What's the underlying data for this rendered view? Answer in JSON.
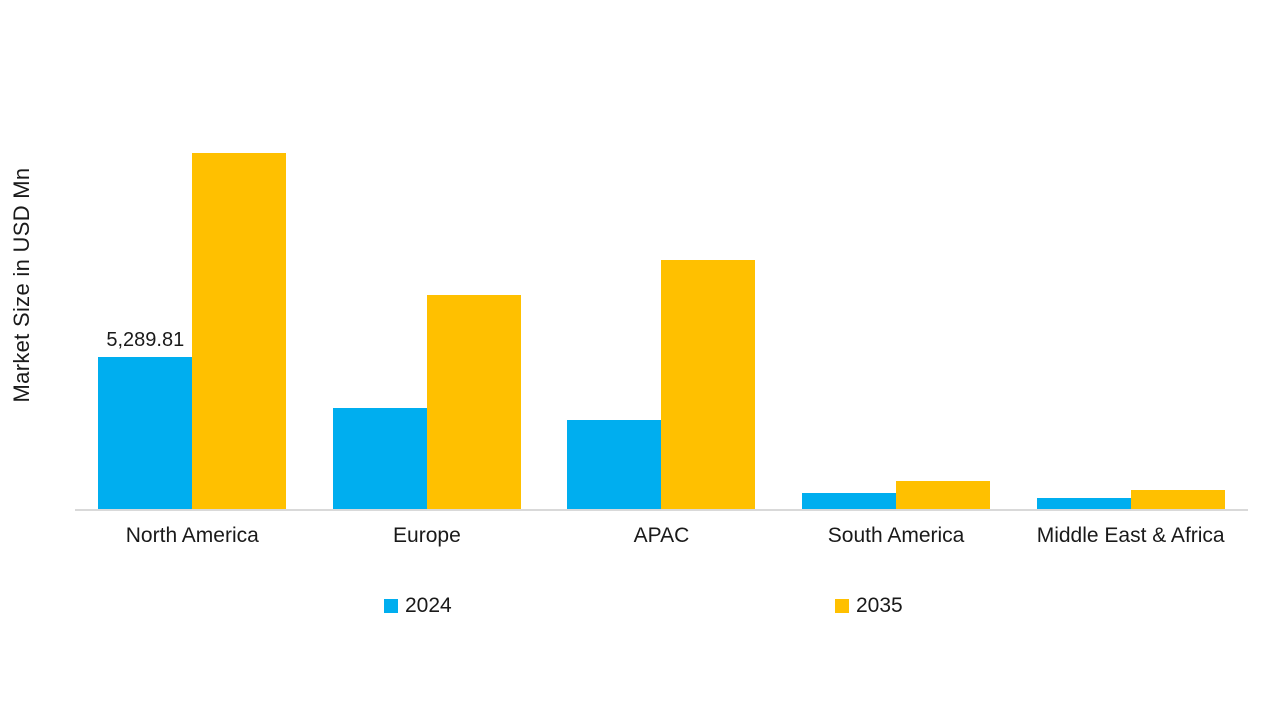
{
  "chart_data": {
    "type": "bar",
    "title": "",
    "xlabel": "",
    "ylabel": "Market Size in USD Mn",
    "ylim": [
      0,
      13500
    ],
    "grid": false,
    "legend_position": "bottom",
    "axis_line_color": "#D9D9D9",
    "text_color": "#1A1A1A",
    "categories": [
      "North America",
      "Europe",
      "APAC",
      "South America",
      "Middle East & Africa"
    ],
    "series": [
      {
        "name": "2024",
        "color": "#00AEEF",
        "values": [
          5289.81,
          3515,
          3100,
          560,
          385
        ],
        "data_labels": [
          "5,289.81",
          "",
          "",
          "",
          ""
        ]
      },
      {
        "name": "2035",
        "color": "#FFC000",
        "values": [
          12350,
          7410,
          8630,
          975,
          660
        ],
        "data_labels": [
          "",
          "",
          "",
          "",
          ""
        ]
      }
    ]
  }
}
